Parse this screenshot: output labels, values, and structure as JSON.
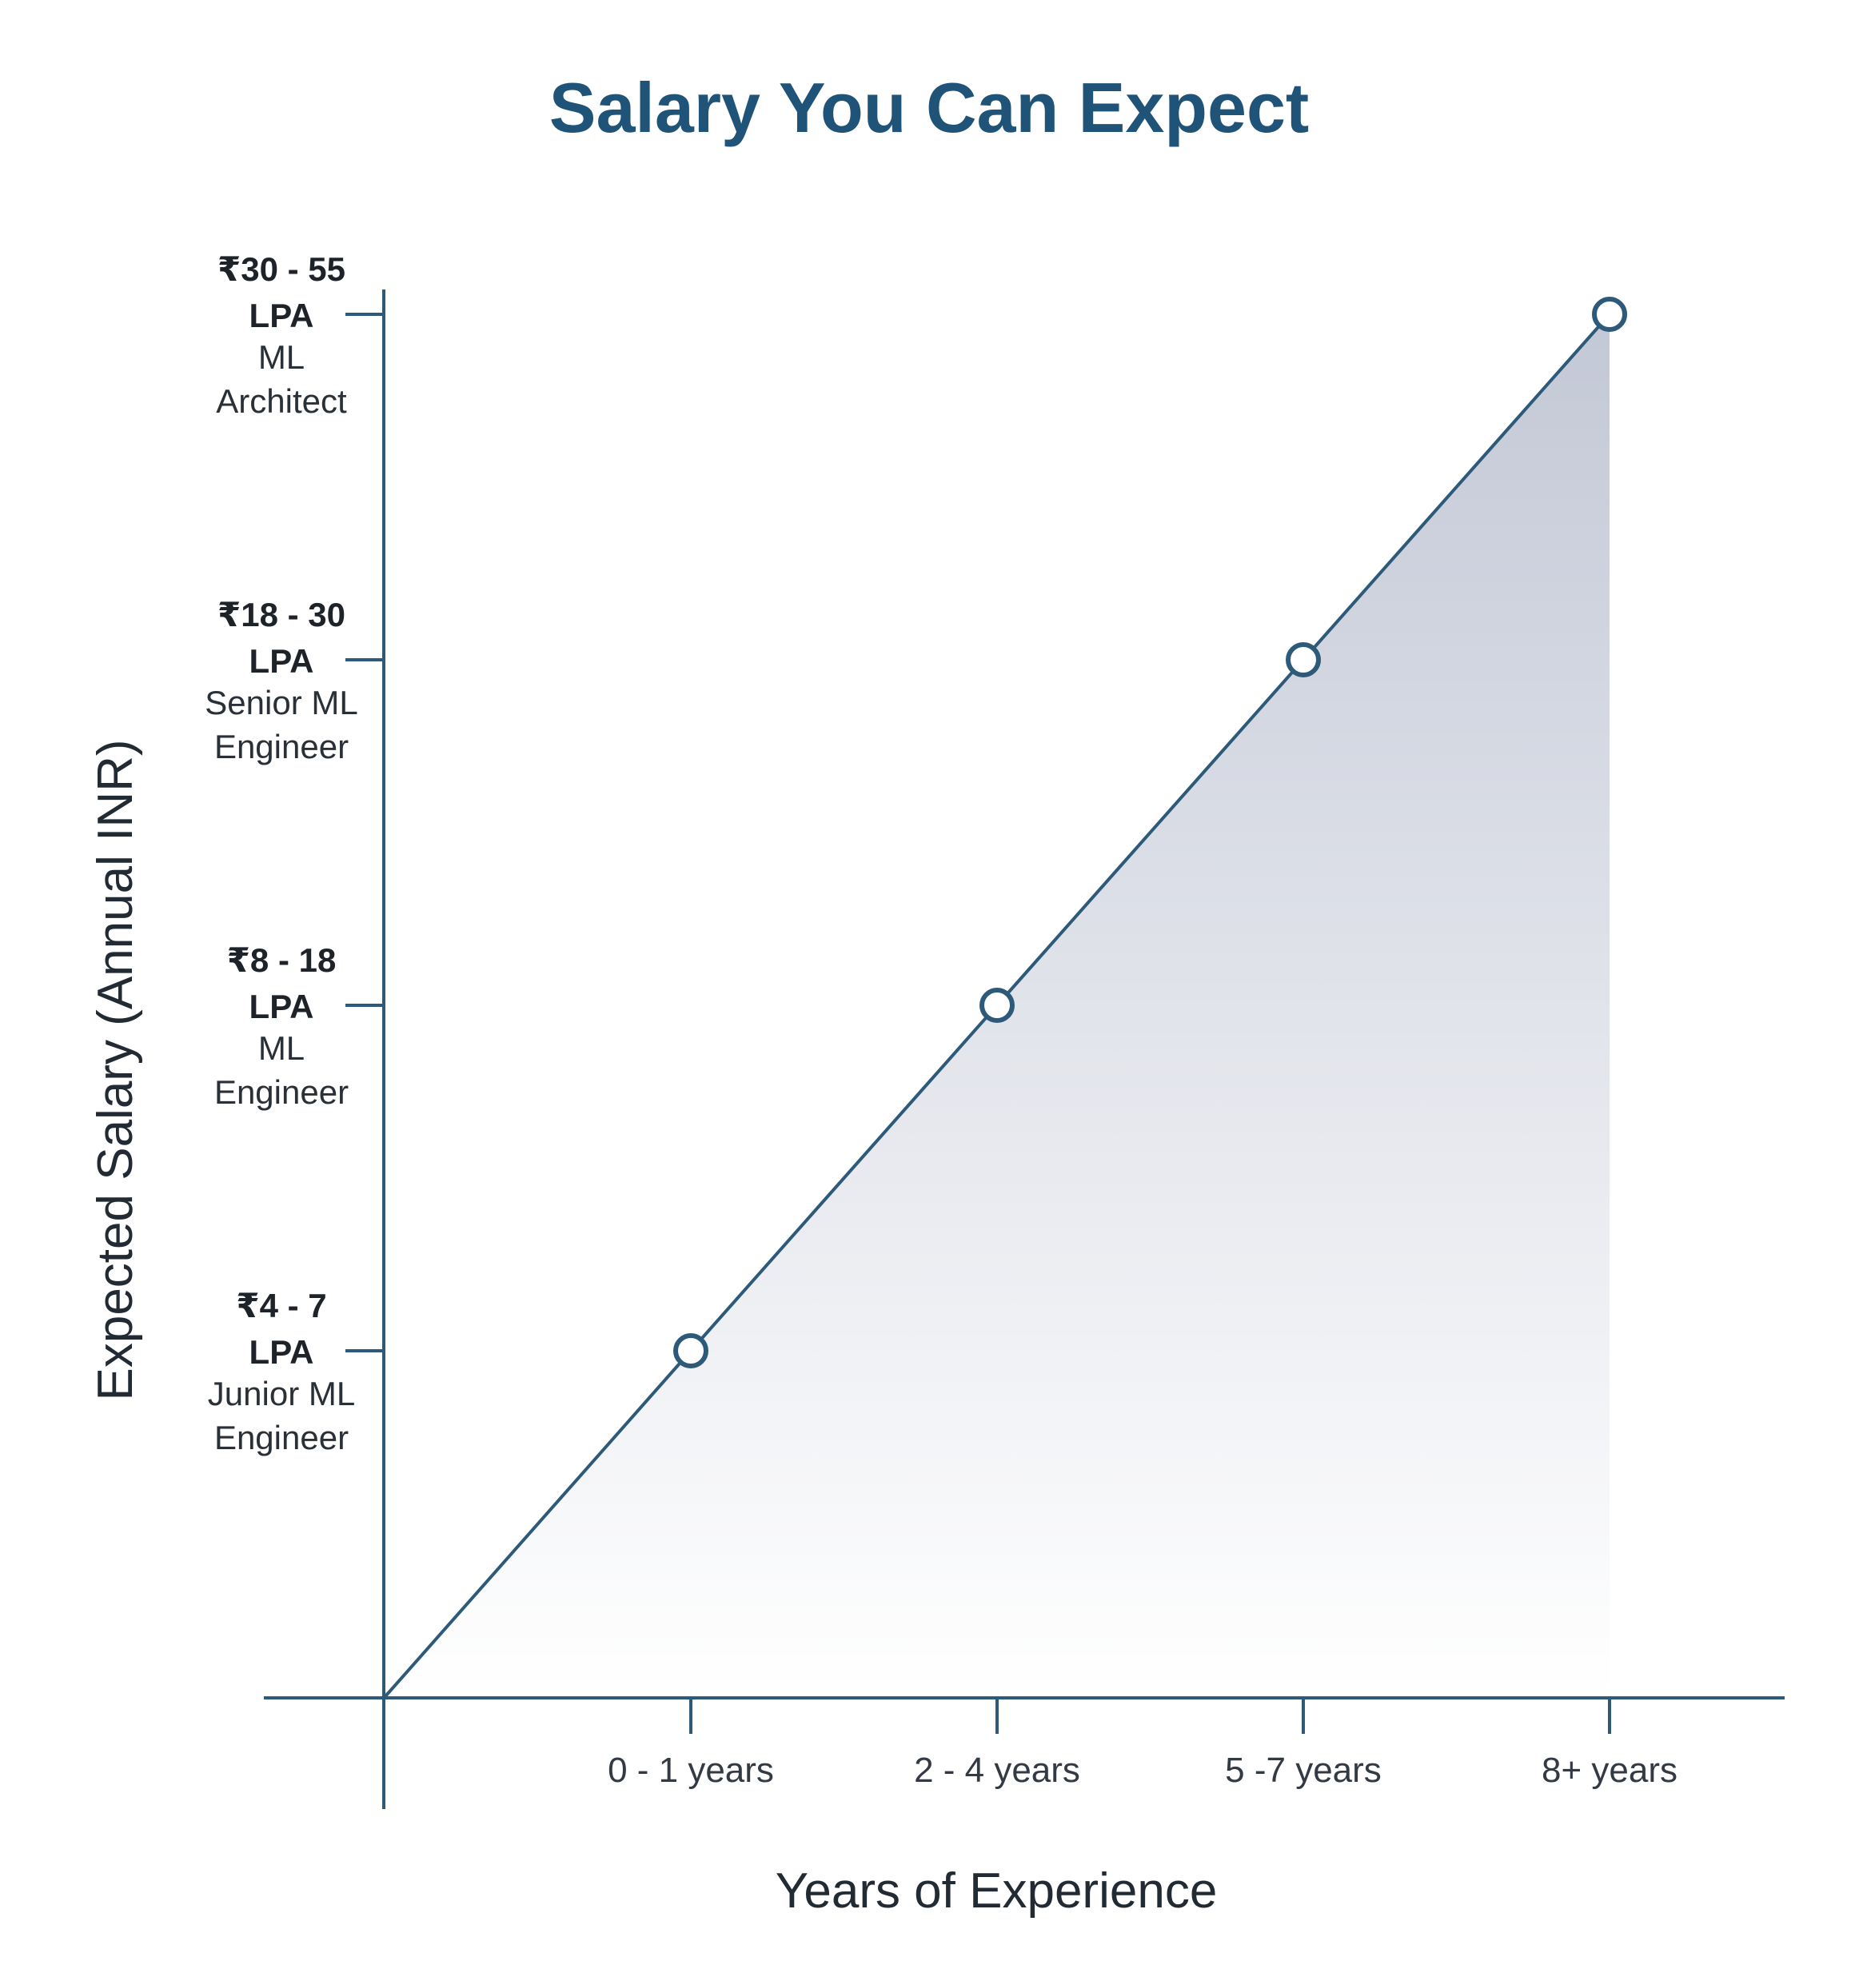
{
  "chart_data": {
    "type": "area",
    "title": "Salary You Can Expect",
    "xlabel": "Years of Experience",
    "ylabel": "Expected Salary (Annual INR)",
    "categories": [
      "0 - 1 years",
      "2 - 4 years",
      "5 -7 years",
      "8+ years"
    ],
    "y_levels": [
      {
        "range": "₹4 - 7",
        "unit": "LPA",
        "role_line1": "Junior ML",
        "role_line2": "Engineer"
      },
      {
        "range": "₹8 - 18",
        "unit": "LPA",
        "role_line1": "ML",
        "role_line2": "Engineer"
      },
      {
        "range": "₹18 - 30",
        "unit": "LPA",
        "role_line1": "Senior ML",
        "role_line2": "Engineer"
      },
      {
        "range": "₹30 - 55",
        "unit": "LPA",
        "role_line1": "ML",
        "role_line2": "Architect"
      }
    ],
    "series": [
      {
        "values": [
          1,
          2,
          3,
          4
        ]
      }
    ],
    "legend": "none",
    "grid": false,
    "colors": {
      "title": "#1f5378",
      "axis": "#2e5a7a",
      "line": "#2e5a7a",
      "area_top": "#c3c8d6",
      "area_bottom": "#ffffff"
    }
  }
}
